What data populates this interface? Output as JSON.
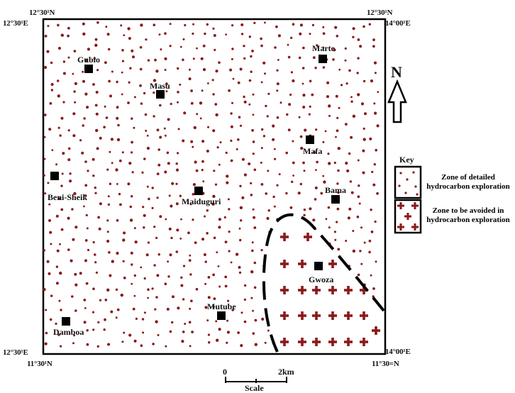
{
  "corners": {
    "top_left_top": "12°30¹N",
    "top_left_side": "12°30¹E",
    "top_right_top": "12°30¹N",
    "top_right_side": "14°00¹E",
    "bottom_left_side": "12°30¹E",
    "bottom_left_bottom": "11°30¹N",
    "bottom_right_side": "14°00¹E",
    "bottom_right_bottom": "11°30=N"
  },
  "towns": {
    "gubio": "Gubio",
    "marte": "Marte",
    "masu": "Masu",
    "mafa": "Mafa",
    "beni_sheik": "Beni-Sheik",
    "maiduguri": "Maiduguri",
    "bama": "Bama",
    "gwoza": "Gwoza",
    "mutube": "Mutube",
    "damboa": "Damboa"
  },
  "north_label": "N",
  "key": {
    "title": "Key",
    "zone_detailed_line1": "Zone of detailed",
    "zone_detailed_line2": "hydrocarbon exploration",
    "zone_avoid_line1": "Zone to be avoided in",
    "zone_avoid_line2": "hydrocarbon exploration"
  },
  "scale": {
    "start": "0",
    "end": "2km",
    "label": "Scale"
  },
  "colors": {
    "dot": "#8b1a1a",
    "border": "#000000"
  }
}
